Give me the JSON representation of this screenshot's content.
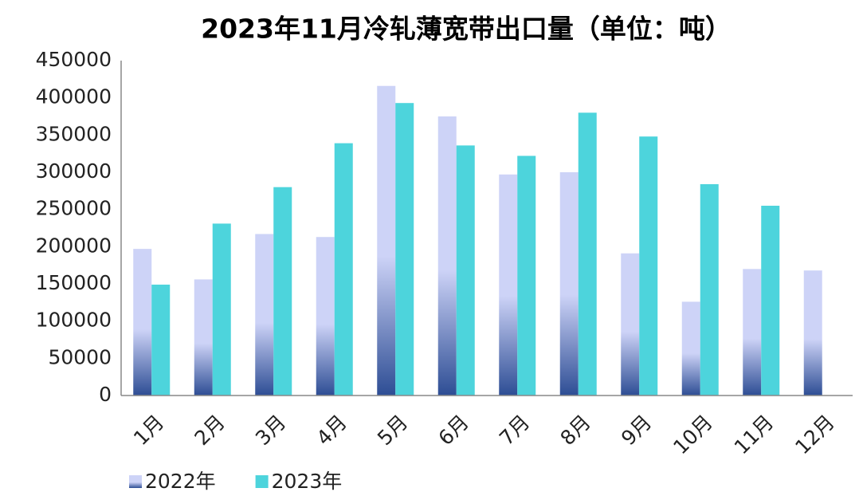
{
  "chart_data": {
    "type": "bar",
    "title": "2023年11月冷轧薄宽带出口量（单位：吨）",
    "categories": [
      "1月",
      "2月",
      "3月",
      "4月",
      "5月",
      "6月",
      "7月",
      "8月",
      "9月",
      "10月",
      "11月",
      "12月"
    ],
    "series": [
      {
        "name": "2022年",
        "color": "#cdd3f7",
        "values": [
          197000,
          156000,
          217000,
          213000,
          416000,
          375000,
          297000,
          300000,
          191000,
          126000,
          170000,
          168000
        ]
      },
      {
        "name": "2023年",
        "color": "#4dd4dc",
        "values": [
          149000,
          231000,
          280000,
          339000,
          393000,
          336000,
          322000,
          380000,
          348000,
          284000,
          255000,
          null
        ]
      }
    ],
    "ylim": [
      0,
      450000
    ],
    "yticks": [
      0,
      50000,
      100000,
      150000,
      200000,
      250000,
      300000,
      350000,
      400000,
      450000
    ],
    "grid": false,
    "legend": "bottom-left"
  }
}
